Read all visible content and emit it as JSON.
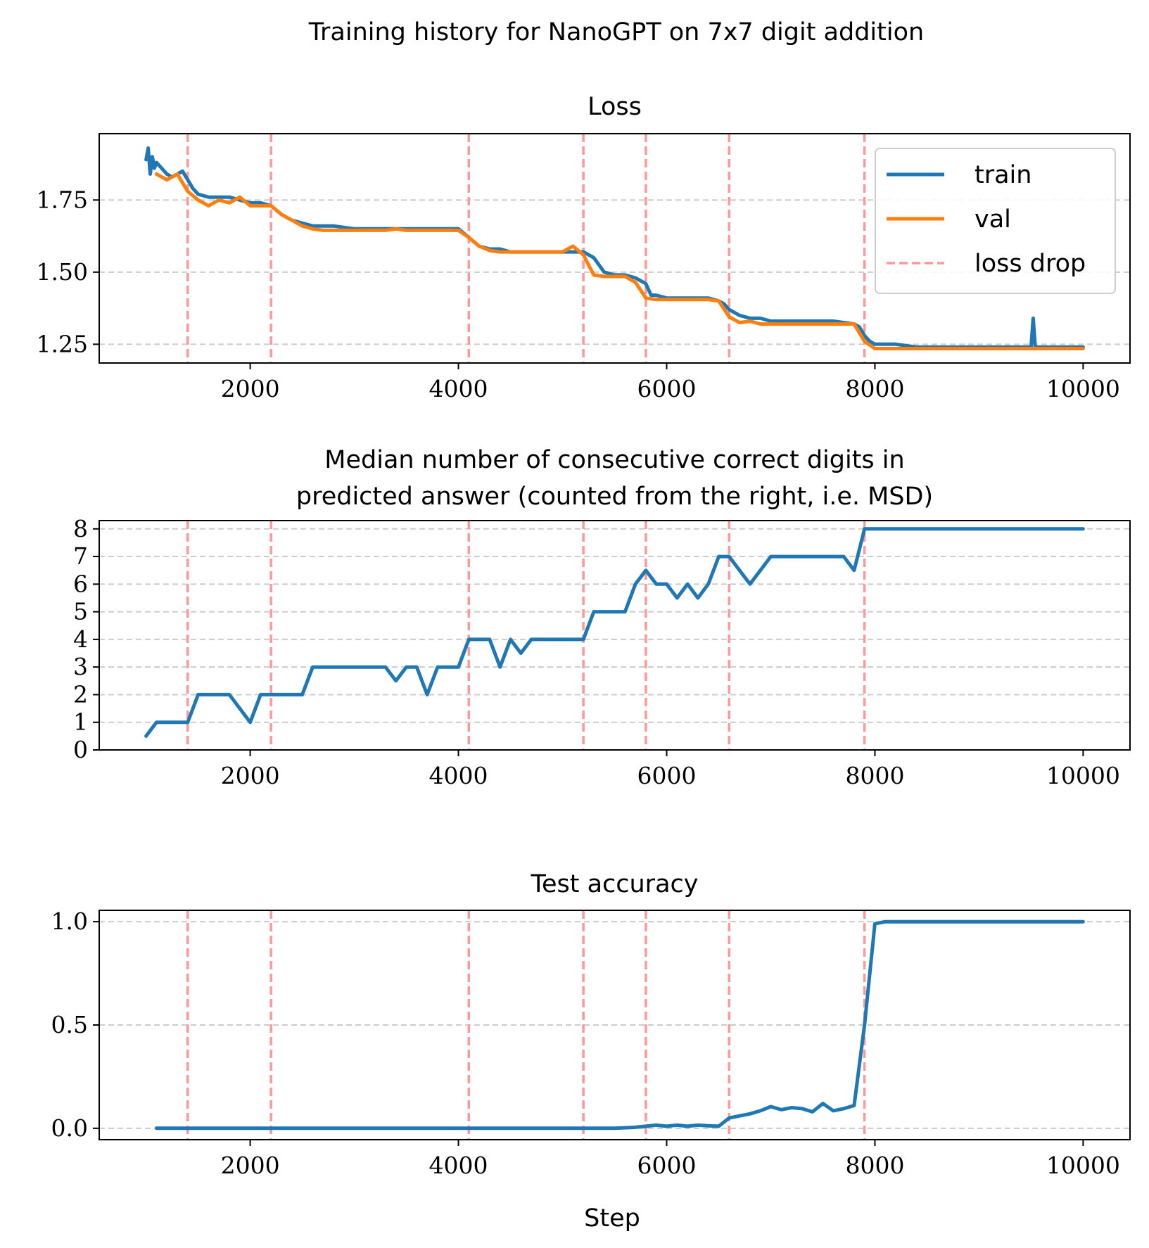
{
  "suptitle": "Training history for NanoGPT on 7x7 digit addition",
  "xlabel": "Step",
  "loss_drop_steps": [
    1400,
    2200,
    4100,
    5200,
    5800,
    6600,
    7900
  ],
  "colors": {
    "train": "#1f77b4",
    "val": "#ff7f0e",
    "loss_drop": "#ff9896"
  },
  "chart_data": [
    {
      "type": "line",
      "title": "Loss",
      "xlim": [
        550,
        10450
      ],
      "ylim": [
        1.185,
        1.98
      ],
      "xticks": [
        2000,
        4000,
        6000,
        8000,
        10000
      ],
      "yticks": [
        1.25,
        1.5,
        1.75
      ],
      "ytick_labels": [
        "1.25",
        "1.50",
        "1.75"
      ],
      "grid": "y-dashed",
      "legend": {
        "placement": "top-right",
        "entries": [
          "train",
          "val",
          "loss drop"
        ]
      },
      "series": [
        {
          "name": "train",
          "x": [
            1000,
            1020,
            1040,
            1060,
            1080,
            1100,
            1150,
            1200,
            1250,
            1300,
            1350,
            1400,
            1450,
            1500,
            1600,
            1700,
            1800,
            1900,
            2000,
            2100,
            2200,
            2300,
            2400,
            2500,
            2600,
            2700,
            2800,
            3000,
            3200,
            3400,
            3600,
            3800,
            4000,
            4100,
            4200,
            4300,
            4400,
            4500,
            4700,
            4900,
            5000,
            5100,
            5200,
            5300,
            5400,
            5500,
            5600,
            5700,
            5750,
            5800,
            5850,
            5900,
            6000,
            6100,
            6200,
            6300,
            6400,
            6500,
            6550,
            6600,
            6700,
            6800,
            6900,
            7000,
            7200,
            7400,
            7600,
            7800,
            7850,
            7900,
            7950,
            8000,
            8200,
            8400,
            8600,
            8800,
            9000,
            9200,
            9400,
            9500,
            9520,
            9540,
            9600,
            9800,
            10000
          ],
          "values": [
            1.89,
            1.93,
            1.84,
            1.9,
            1.86,
            1.88,
            1.86,
            1.84,
            1.83,
            1.84,
            1.85,
            1.82,
            1.79,
            1.77,
            1.76,
            1.76,
            1.76,
            1.75,
            1.74,
            1.74,
            1.73,
            1.7,
            1.68,
            1.67,
            1.66,
            1.66,
            1.66,
            1.65,
            1.65,
            1.65,
            1.65,
            1.65,
            1.65,
            1.62,
            1.59,
            1.58,
            1.58,
            1.57,
            1.57,
            1.57,
            1.57,
            1.57,
            1.57,
            1.55,
            1.5,
            1.49,
            1.49,
            1.48,
            1.47,
            1.46,
            1.42,
            1.42,
            1.41,
            1.41,
            1.41,
            1.41,
            1.41,
            1.4,
            1.39,
            1.37,
            1.35,
            1.34,
            1.34,
            1.33,
            1.33,
            1.33,
            1.33,
            1.32,
            1.31,
            1.28,
            1.26,
            1.25,
            1.25,
            1.24,
            1.24,
            1.24,
            1.24,
            1.24,
            1.24,
            1.24,
            1.34,
            1.24,
            1.24,
            1.24,
            1.24
          ]
        },
        {
          "name": "val",
          "x": [
            1100,
            1200,
            1300,
            1400,
            1500,
            1600,
            1700,
            1800,
            1900,
            2000,
            2100,
            2200,
            2300,
            2400,
            2500,
            2600,
            2700,
            2800,
            2900,
            3000,
            3100,
            3200,
            3300,
            3400,
            3500,
            3600,
            3700,
            3800,
            3900,
            4000,
            4100,
            4200,
            4300,
            4400,
            4500,
            4600,
            4700,
            4800,
            4900,
            5000,
            5100,
            5200,
            5300,
            5400,
            5500,
            5600,
            5700,
            5800,
            5900,
            6000,
            6100,
            6200,
            6300,
            6400,
            6500,
            6600,
            6700,
            6800,
            6900,
            7000,
            7100,
            7200,
            7300,
            7400,
            7500,
            7600,
            7700,
            7800,
            7900,
            8000,
            8200,
            8400,
            8600,
            8800,
            9000,
            9200,
            9400,
            9600,
            9800,
            10000
          ],
          "values": [
            1.84,
            1.82,
            1.84,
            1.78,
            1.75,
            1.73,
            1.75,
            1.74,
            1.76,
            1.73,
            1.73,
            1.73,
            1.7,
            1.68,
            1.66,
            1.65,
            1.645,
            1.645,
            1.645,
            1.645,
            1.645,
            1.645,
            1.645,
            1.65,
            1.645,
            1.645,
            1.645,
            1.645,
            1.645,
            1.645,
            1.62,
            1.59,
            1.575,
            1.57,
            1.57,
            1.57,
            1.57,
            1.57,
            1.57,
            1.57,
            1.59,
            1.56,
            1.49,
            1.485,
            1.485,
            1.485,
            1.465,
            1.41,
            1.405,
            1.405,
            1.405,
            1.405,
            1.405,
            1.405,
            1.4,
            1.345,
            1.325,
            1.33,
            1.32,
            1.32,
            1.32,
            1.32,
            1.32,
            1.32,
            1.32,
            1.32,
            1.32,
            1.32,
            1.26,
            1.235,
            1.235,
            1.235,
            1.235,
            1.235,
            1.235,
            1.235,
            1.235,
            1.235,
            1.235,
            1.235
          ]
        }
      ]
    },
    {
      "type": "line",
      "title_lines": [
        "Median number of consecutive correct digits in",
        "predicted answer (counted from the right, i.e. MSD)"
      ],
      "xlim": [
        550,
        10450
      ],
      "ylim": [
        0,
        8.3
      ],
      "xticks": [
        2000,
        4000,
        6000,
        8000,
        10000
      ],
      "yticks": [
        0,
        1,
        2,
        3,
        4,
        5,
        6,
        7,
        8
      ],
      "ytick_labels": [
        "0",
        "1",
        "2",
        "3",
        "4",
        "5",
        "6",
        "7",
        "8"
      ],
      "grid": "y-dashed",
      "series": [
        {
          "x": [
            1000,
            1100,
            1200,
            1300,
            1400,
            1500,
            1600,
            1700,
            1800,
            1900,
            2000,
            2100,
            2200,
            2300,
            2400,
            2500,
            2600,
            2700,
            2800,
            2900,
            3000,
            3100,
            3200,
            3300,
            3400,
            3500,
            3600,
            3700,
            3800,
            3900,
            4000,
            4100,
            4200,
            4300,
            4400,
            4500,
            4600,
            4700,
            4800,
            4900,
            5000,
            5100,
            5200,
            5300,
            5400,
            5500,
            5600,
            5700,
            5800,
            5900,
            6000,
            6100,
            6200,
            6300,
            6400,
            6500,
            6600,
            6700,
            6800,
            6900,
            7000,
            7100,
            7200,
            7300,
            7400,
            7500,
            7600,
            7700,
            7800,
            7900,
            8000,
            8200,
            8400,
            8600,
            8800,
            9000,
            9200,
            9400,
            9600,
            9800,
            10000
          ],
          "values": [
            0.5,
            1,
            1,
            1,
            1,
            2,
            2,
            2,
            2,
            1.5,
            1,
            2,
            2,
            2,
            2,
            2,
            3,
            3,
            3,
            3,
            3,
            3,
            3,
            3,
            2.5,
            3,
            3,
            2,
            3,
            3,
            3,
            4,
            4,
            4,
            3,
            4,
            3.5,
            4,
            4,
            4,
            4,
            4,
            4,
            5,
            5,
            5,
            5,
            6,
            6.5,
            6,
            6,
            5.5,
            6,
            5.5,
            6,
            7,
            7,
            6.5,
            6,
            6.5,
            7,
            7,
            7,
            7,
            7,
            7,
            7,
            7,
            6.5,
            8,
            8,
            8,
            8,
            8,
            8,
            8,
            8,
            8,
            8,
            8,
            8
          ]
        }
      ]
    },
    {
      "type": "line",
      "title": "Test accuracy",
      "xlim": [
        550,
        10450
      ],
      "ylim": [
        -0.055,
        1.055
      ],
      "xticks": [
        2000,
        4000,
        6000,
        8000,
        10000
      ],
      "yticks": [
        0.0,
        0.5,
        1.0
      ],
      "ytick_labels": [
        "0.0",
        "0.5",
        "1.0"
      ],
      "grid": "y-dashed",
      "xlabel": "Step",
      "series": [
        {
          "x": [
            1100,
            1500,
            2000,
            2500,
            3000,
            3500,
            4000,
            4500,
            5000,
            5500,
            5700,
            5800,
            5900,
            6000,
            6100,
            6200,
            6300,
            6400,
            6500,
            6600,
            6700,
            6800,
            6900,
            7000,
            7100,
            7200,
            7300,
            7400,
            7500,
            7600,
            7700,
            7800,
            7900,
            8000,
            8100,
            8200,
            8400,
            8600,
            8800,
            9000,
            9200,
            9400,
            9600,
            9800,
            10000
          ],
          "values": [
            0,
            0,
            0,
            0,
            0,
            0,
            0,
            0,
            0,
            0,
            0.005,
            0.01,
            0.015,
            0.01,
            0.015,
            0.01,
            0.015,
            0.012,
            0.01,
            0.05,
            0.06,
            0.07,
            0.085,
            0.105,
            0.09,
            0.1,
            0.095,
            0.08,
            0.12,
            0.085,
            0.095,
            0.11,
            0.5,
            0.99,
            1.0,
            1.0,
            1.0,
            1.0,
            1.0,
            1.0,
            1.0,
            1.0,
            1.0,
            1.0,
            1.0
          ]
        }
      ]
    }
  ]
}
